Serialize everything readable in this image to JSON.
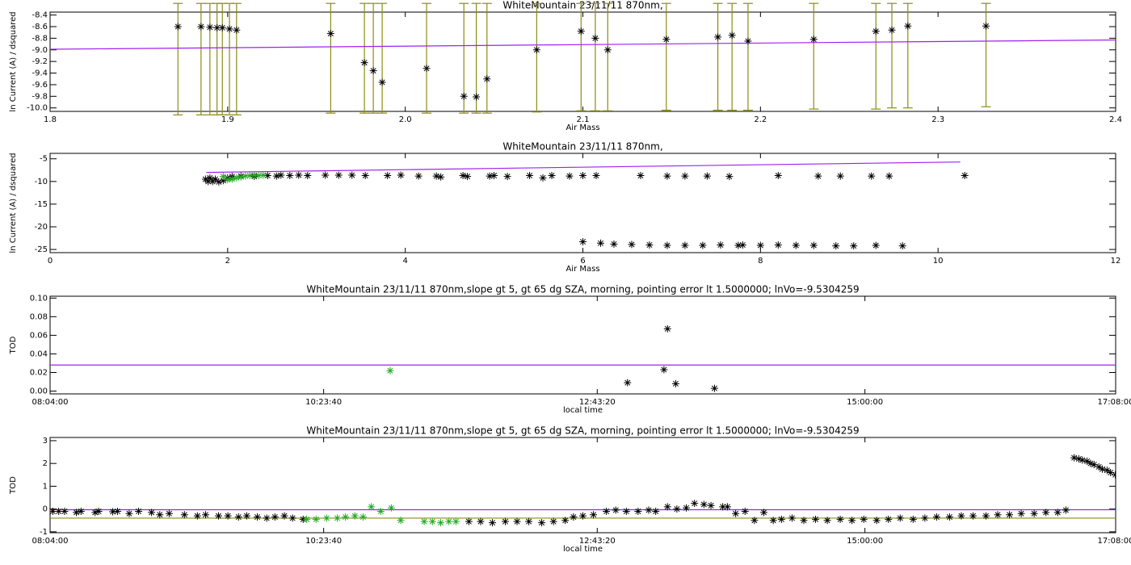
{
  "chart_data": [
    {
      "type": "scatter",
      "title": "WhiteMountain 23/11/11 870nm,",
      "xlabel": "Air Mass",
      "ylabel": "ln Current (A) / dsquared",
      "xlim": [
        1.8,
        2.4
      ],
      "ylim": [
        -10.06,
        -8.35
      ],
      "xticks": [
        1.8,
        1.9,
        {
          "value": 2,
          "label": "2.0"
        },
        2.1,
        2.2,
        2.3,
        2.4
      ],
      "yticks": [
        {
          "value": -10,
          "label": "-10.0"
        },
        -9.8,
        -9.6,
        -9.4,
        -9.2,
        {
          "value": -9,
          "label": "-9.0"
        },
        -8.8,
        -8.6,
        -8.4
      ],
      "series": [
        {
          "style": "asterisk",
          "color": "#000000",
          "error_color": "#8c8c14",
          "x": [
            1.872,
            1.885,
            1.89,
            1.894,
            1.897,
            1.901,
            1.905,
            1.958,
            1.977,
            1.982,
            1.987,
            2.012,
            2.033,
            2.04,
            2.046,
            2.074,
            2.099,
            2.107,
            2.114,
            2.147,
            2.176,
            2.184,
            2.193,
            2.23,
            2.265,
            2.274,
            2.283,
            2.327
          ],
          "values": [
            -8.6,
            -8.6,
            -8.61,
            -8.62,
            -8.62,
            -8.64,
            -8.66,
            -8.72,
            -9.22,
            -9.36,
            -9.56,
            -9.32,
            -9.8,
            -9.81,
            -9.5,
            -9.0,
            -8.68,
            -8.8,
            -9.0,
            -8.82,
            -8.78,
            -8.75,
            -8.85,
            -8.82,
            -8.68,
            -8.66,
            -8.59,
            -8.59
          ],
          "error_low": [
            1.52,
            1.52,
            1.51,
            1.5,
            1.5,
            1.48,
            1.46,
            1.37,
            0.87,
            0.73,
            0.53,
            0.77,
            0.29,
            0.28,
            0.59,
            1.07,
            1.37,
            1.25,
            1.05,
            1.22,
            1.26,
            1.29,
            1.19,
            1.2,
            1.34,
            1.34,
            1.41,
            1.39
          ],
          "error_high": [
            0.4,
            0.4,
            0.41,
            0.42,
            0.42,
            0.44,
            0.46,
            0.52,
            1.02,
            1.16,
            1.36,
            1.12,
            1.6,
            1.61,
            1.3,
            0.8,
            0.48,
            0.6,
            0.8,
            0.62,
            0.58,
            0.55,
            0.65,
            0.62,
            0.48,
            0.46,
            0.39,
            0.39
          ]
        },
        {
          "style": "line",
          "color": "#a020f0",
          "x": [
            1.8,
            2.4
          ],
          "values": [
            -8.99,
            -8.83
          ]
        }
      ]
    },
    {
      "type": "scatter",
      "title": "WhiteMountain 23/11/11 870nm,",
      "xlabel": "Air Mass",
      "ylabel": "ln Current (A) / dsquared",
      "xlim": [
        0,
        12
      ],
      "ylim": [
        -25.7,
        -3.8
      ],
      "xticks": [
        0,
        2,
        4,
        6,
        8,
        10,
        12
      ],
      "yticks": [
        -25,
        -20,
        -15,
        -10,
        -5
      ],
      "series": [
        {
          "style": "asterisk",
          "color": "#000000",
          "x": [
            1.75,
            1.78,
            1.8,
            1.83,
            1.86,
            1.9,
            1.95,
            2.0,
            2.05,
            2.15,
            2.3,
            2.45,
            2.55,
            2.6,
            2.7,
            2.8,
            2.9,
            3.1,
            3.25,
            3.4,
            3.55,
            3.8,
            3.95,
            4.15,
            4.35,
            4.4,
            4.65,
            4.7,
            4.95,
            5.0,
            5.15,
            5.4,
            5.55,
            5.65,
            5.85,
            6.0,
            6.15,
            6.65,
            6.95,
            7.15,
            7.4,
            7.65,
            8.2,
            8.65,
            8.9,
            9.25,
            9.45,
            10.3,
            6.0,
            6.2,
            6.35,
            6.55,
            6.75,
            6.95,
            7.15,
            7.35,
            7.55,
            7.75,
            7.8,
            8.0,
            8.2,
            8.4,
            8.6,
            8.85,
            9.05,
            9.3,
            9.6
          ],
          "values": [
            -9.5,
            -10,
            -9.2,
            -10,
            -9.5,
            -10.1,
            -9.8,
            -9.2,
            -8.9,
            -8.8,
            -8.9,
            -8.7,
            -8.8,
            -8.6,
            -8.7,
            -8.6,
            -8.7,
            -8.6,
            -8.6,
            -8.6,
            -8.7,
            -8.7,
            -8.6,
            -8.8,
            -8.8,
            -9.0,
            -8.7,
            -8.9,
            -8.8,
            -8.7,
            -8.9,
            -8.7,
            -9.2,
            -8.7,
            -8.8,
            -8.7,
            -8.7,
            -8.7,
            -8.8,
            -8.8,
            -8.8,
            -8.9,
            -8.7,
            -8.8,
            -8.8,
            -8.8,
            -8.8,
            -8.7,
            -23.3,
            -23.6,
            -23.8,
            -23.9,
            -24.0,
            -24.1,
            -24.1,
            -24.1,
            -24.0,
            -24.1,
            -24.0,
            -24.1,
            -24.0,
            -24.1,
            -24.1,
            -24.2,
            -24.2,
            -24.1,
            -24.2
          ]
        },
        {
          "style": "asterisk",
          "color": "#22aa22",
          "x": [
            1.95,
            2.0,
            2.05,
            2.1,
            2.15,
            2.2,
            2.25,
            2.3,
            2.35,
            2.4
          ],
          "values": [
            -8.9,
            -9.6,
            -9.5,
            -9.2,
            -9.0,
            -8.8,
            -8.7,
            -8.6,
            -8.7,
            -8.6
          ]
        },
        {
          "style": "line",
          "color": "#a020f0",
          "x": [
            1.76,
            10.25
          ],
          "values": [
            -8.0,
            -5.7
          ]
        }
      ]
    },
    {
      "type": "scatter",
      "title": "WhiteMountain 23/11/11 870nm,slope gt 5, gt 65 dg SZA, morning, pointing error lt 1.5000000; lnVo=-9.5304259",
      "xlabel": "local time",
      "ylabel": "TOD",
      "xlim": [
        8.0666667,
        17.1333333
      ],
      "ylim": [
        -0.003,
        0.102
      ],
      "xticks": [
        {
          "value": 8.0666667,
          "label": "08:04:00"
        },
        {
          "value": 10.3944444,
          "label": "10:23:40"
        },
        {
          "value": 12.7222222,
          "label": "12:43:20"
        },
        {
          "value": 15,
          "label": "15:00:00"
        },
        {
          "value": 17.1333333,
          "label": "17:08:00"
        }
      ],
      "yticks": [
        {
          "value": 0,
          "label": "0.00"
        },
        0.02,
        0.04,
        0.06,
        0.08,
        {
          "value": 0.1,
          "label": "0.10"
        }
      ],
      "series": [
        {
          "style": "asterisk",
          "color": "#22aa22",
          "x": [
            10.96
          ],
          "values": [
            0.022
          ]
        },
        {
          "style": "asterisk",
          "color": "#000000",
          "x": [
            12.98,
            13.29,
            13.32,
            13.39,
            13.72
          ],
          "values": [
            0.009,
            0.023,
            0.067,
            0.008,
            0.003
          ]
        },
        {
          "style": "line",
          "color": "#a020f0",
          "x": [
            8.0666667,
            17.1333333
          ],
          "values": [
            0.028,
            0.028
          ]
        }
      ]
    },
    {
      "type": "scatter",
      "title": "WhiteMountain 23/11/11 870nm,slope gt 5, gt 65 dg SZA, morning, pointing error lt 1.5000000; lnVo=-9.5304259",
      "xlabel": "local time",
      "ylabel": "TOD",
      "xlim": [
        8.0666667,
        17.1333333
      ],
      "ylim": [
        -1.04,
        3.14
      ],
      "xticks": [
        {
          "value": 8.0666667,
          "label": "08:04:00"
        },
        {
          "value": 10.3944444,
          "label": "10:23:40"
        },
        {
          "value": 12.7222222,
          "label": "12:43:20"
        },
        {
          "value": 15,
          "label": "15:00:00"
        },
        {
          "value": 17.1333333,
          "label": "17:08:00"
        }
      ],
      "yticks": [
        -1,
        0,
        1,
        2,
        3
      ],
      "series": [
        {
          "style": "line",
          "color": "#a020f0",
          "x": [
            8.0666667,
            17.1333333
          ],
          "values": [
            -0.03,
            -0.03
          ]
        },
        {
          "style": "line",
          "color": "#8c8c14",
          "x": [
            8.0666667,
            17.1333333
          ],
          "values": [
            -0.4,
            -0.4
          ]
        },
        {
          "style": "asterisk",
          "color": "#000000",
          "x": [
            8.09,
            8.14,
            8.19,
            8.29,
            8.33,
            8.45,
            8.48,
            8.6,
            8.64,
            8.74,
            8.82,
            8.93,
            9.0,
            9.08,
            9.21,
            9.32,
            9.39,
            9.5,
            9.58,
            9.67,
            9.74,
            9.83,
            9.91,
            9.98,
            10.06,
            10.13,
            10.22,
            11.63,
            11.73,
            11.83,
            11.94,
            12.04,
            12.14,
            12.25,
            12.35,
            12.45,
            12.52,
            12.6,
            12.69,
            12.8,
            12.88,
            12.97,
            13.07,
            13.16,
            13.22,
            13.32,
            13.4,
            13.48,
            13.55,
            13.63,
            13.69,
            13.79,
            13.83,
            13.9,
            13.98,
            14.06,
            14.14,
            14.22,
            14.29,
            14.38,
            14.48,
            14.58,
            14.68,
            14.79,
            14.89,
            14.99,
            15.1,
            15.2,
            15.3,
            15.41,
            15.51,
            15.61,
            15.72,
            15.82,
            15.92,
            16.03,
            16.13,
            16.23,
            16.33,
            16.44,
            16.54,
            16.64,
            16.71,
            16.78,
            16.82,
            16.85,
            16.89,
            16.92,
            16.95,
            16.99,
            17.02,
            17.06,
            17.09,
            17.13
          ],
          "values": [
            -0.1,
            -0.1,
            -0.1,
            -0.15,
            -0.1,
            -0.15,
            -0.1,
            -0.12,
            -0.1,
            -0.2,
            -0.1,
            -0.15,
            -0.25,
            -0.2,
            -0.25,
            -0.3,
            -0.25,
            -0.3,
            -0.3,
            -0.35,
            -0.3,
            -0.35,
            -0.4,
            -0.35,
            -0.3,
            -0.4,
            -0.45,
            -0.55,
            -0.55,
            -0.6,
            -0.55,
            -0.55,
            -0.55,
            -0.6,
            -0.55,
            -0.5,
            -0.35,
            -0.3,
            -0.25,
            -0.1,
            -0.05,
            -0.1,
            -0.1,
            -0.05,
            -0.1,
            0.1,
            0.0,
            0.05,
            0.25,
            0.2,
            0.15,
            0.1,
            0.1,
            -0.2,
            -0.1,
            -0.5,
            -0.15,
            -0.5,
            -0.45,
            -0.4,
            -0.5,
            -0.45,
            -0.5,
            -0.45,
            -0.5,
            -0.45,
            -0.5,
            -0.45,
            -0.4,
            -0.45,
            -0.4,
            -0.35,
            -0.35,
            -0.3,
            -0.3,
            -0.3,
            -0.25,
            -0.25,
            -0.2,
            -0.2,
            -0.15,
            -0.15,
            -0.05,
            2.25,
            2.2,
            2.15,
            2.1,
            2.0,
            1.95,
            1.85,
            1.75,
            1.7,
            1.6,
            1.5
          ]
        },
        {
          "style": "asterisk",
          "color": "#22aa22",
          "x": [
            10.25,
            10.33,
            10.42,
            10.51,
            10.58,
            10.66,
            10.73,
            10.8,
            10.88,
            10.97,
            11.05,
            11.25,
            11.32,
            11.39,
            11.46,
            11.52
          ],
          "values": [
            -0.45,
            -0.45,
            -0.4,
            -0.4,
            -0.35,
            -0.3,
            -0.35,
            0.1,
            -0.1,
            0.05,
            -0.5,
            -0.55,
            -0.55,
            -0.6,
            -0.55,
            -0.55
          ]
        }
      ]
    }
  ]
}
